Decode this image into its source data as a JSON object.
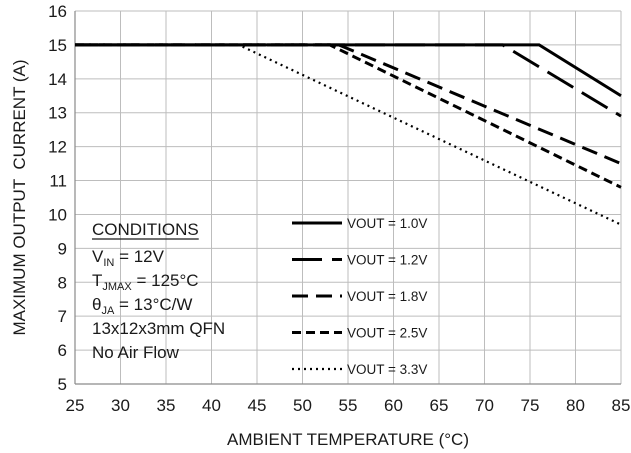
{
  "chart_data": {
    "type": "line",
    "xlabel": "AMBIENT TEMPERATURE (°C)",
    "ylabel": "MAXIMUM OUTPUT  CURRENT (A)",
    "xlim": [
      25,
      85
    ],
    "ylim": [
      5,
      16
    ],
    "x_ticks": [
      "25",
      "30",
      "35",
      "40",
      "45",
      "50",
      "55",
      "60",
      "65",
      "70",
      "75",
      "80",
      "85"
    ],
    "y_ticks": [
      "5",
      "6",
      "7",
      "8",
      "9",
      "10",
      "11",
      "12",
      "13",
      "14",
      "15",
      "16"
    ],
    "grid": true,
    "legend_position": "center",
    "series": [
      {
        "name": "VOUT = 1.0V",
        "style": "solid",
        "x": [
          25,
          76,
          85
        ],
        "y": [
          15,
          15,
          13.5
        ]
      },
      {
        "name": "VOUT = 1.2V",
        "style": "long-dash",
        "x": [
          25,
          72,
          85
        ],
        "y": [
          15,
          15,
          12.9
        ]
      },
      {
        "name": "VOUT = 1.8V",
        "style": "dash",
        "x": [
          25,
          54,
          85
        ],
        "y": [
          15,
          15,
          11.5
        ]
      },
      {
        "name": "VOUT = 2.5V",
        "style": "short-dash",
        "x": [
          25,
          53,
          85
        ],
        "y": [
          15,
          15,
          10.8
        ]
      },
      {
        "name": "VOUT = 3.3V",
        "style": "dot",
        "x": [
          25,
          43,
          85
        ],
        "y": [
          15,
          15,
          9.7
        ]
      }
    ],
    "annotation": {
      "heading": "CONDITIONS",
      "lines": [
        {
          "main": "V",
          "sub": "IN",
          "rest": " = 12V"
        },
        {
          "main": "T",
          "sub": "JMAX",
          "rest": " = 125°C"
        },
        {
          "main": "θ",
          "sub": "JA",
          "rest": " = 13°C/W"
        },
        {
          "main": "13x12x3mm QFN",
          "sub": "",
          "rest": ""
        },
        {
          "main": "No Air Flow",
          "sub": "",
          "rest": ""
        }
      ]
    }
  },
  "colors": {
    "line": "#000000",
    "grid": "#bdbdbd",
    "text": "#1a1a1a"
  }
}
